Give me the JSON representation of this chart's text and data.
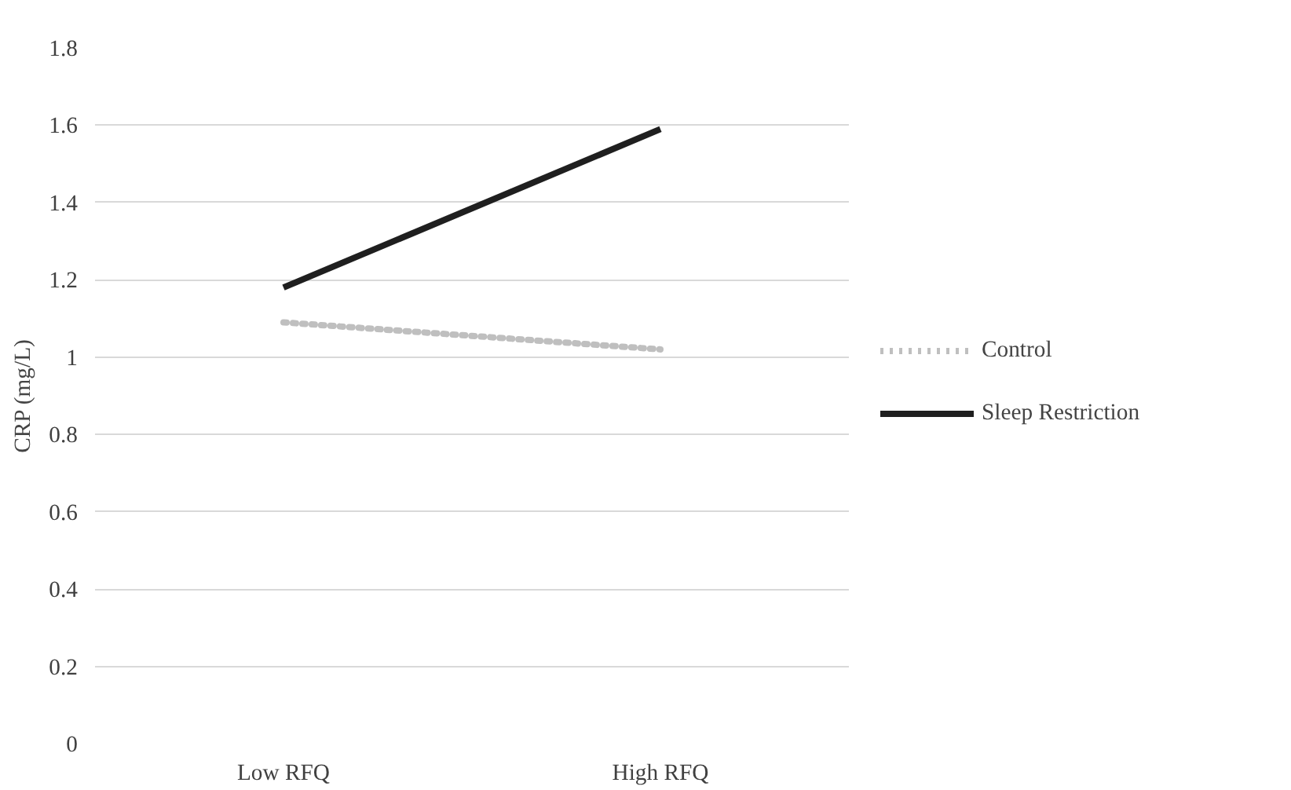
{
  "chart_data": {
    "type": "line",
    "ylabel": "CRP (mg/L)",
    "categories": [
      "Low RFQ",
      "High RFQ"
    ],
    "series": [
      {
        "name": "Control",
        "color": "#bfbfbf",
        "values": [
          1.09,
          1.02
        ],
        "line_style": "dotted"
      },
      {
        "name": "Sleep Restriction",
        "color": "#1f1f1f",
        "values": [
          1.18,
          1.59
        ],
        "line_style": "solid"
      }
    ],
    "ylim": [
      0,
      1.8
    ],
    "yticks": [
      0,
      0.2,
      0.4,
      0.6,
      0.8,
      1,
      1.2,
      1.4,
      1.6,
      1.8
    ],
    "grid": "y",
    "legend": "right",
    "marker": "none"
  }
}
